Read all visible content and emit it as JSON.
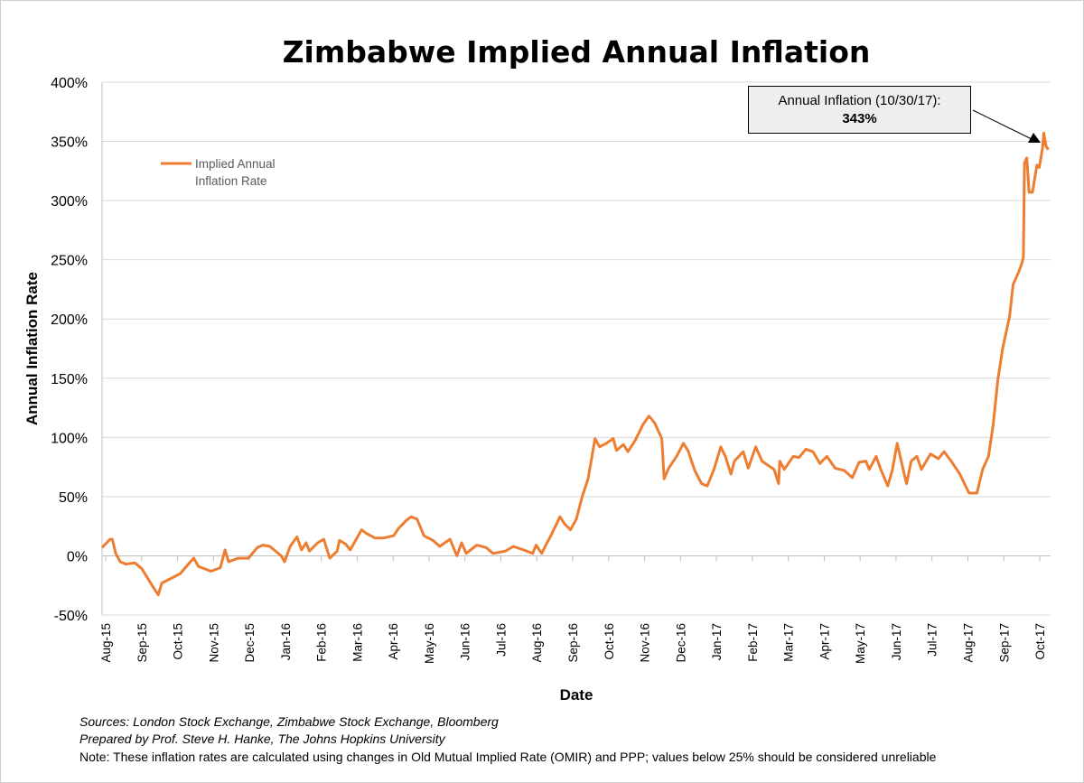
{
  "chart_data": {
    "type": "line",
    "title": "Zimbabwe Implied Annual Inflation",
    "xlabel": "Date",
    "ylabel": "Annual Inflation Rate",
    "ylim": [
      -50,
      400
    ],
    "yticks": [
      "-50%",
      "0%",
      "50%",
      "100%",
      "150%",
      "200%",
      "250%",
      "300%",
      "350%",
      "400%"
    ],
    "ytick_values": [
      -50,
      0,
      50,
      100,
      150,
      200,
      250,
      300,
      350,
      400
    ],
    "xticks": [
      "Aug-15",
      "Sep-15",
      "Oct-15",
      "Nov-15",
      "Dec-15",
      "Jan-16",
      "Feb-16",
      "Mar-16",
      "Apr-16",
      "May-16",
      "Jun-16",
      "Jul-16",
      "Aug-16",
      "Sep-16",
      "Oct-16",
      "Nov-16",
      "Dec-16",
      "Jan-17",
      "Feb-17",
      "Mar-17",
      "Apr-17",
      "May-17",
      "Jun-17",
      "Jul-17",
      "Aug-17",
      "Sep-17",
      "Oct-17"
    ],
    "grid": "horizontal",
    "legend_position": "top-left",
    "series": [
      {
        "name": "Implied Annual Inflation Rate",
        "legend_label": [
          "Implied Annual",
          "Inflation Rate"
        ],
        "color": "#ED7D31",
        "points": [
          [
            "2015-08-01",
            7
          ],
          [
            "2015-08-08",
            14
          ],
          [
            "2015-08-10",
            14
          ],
          [
            "2015-08-13",
            2
          ],
          [
            "2015-08-17",
            -5
          ],
          [
            "2015-08-22",
            -7
          ],
          [
            "2015-08-30",
            -6
          ],
          [
            "2015-09-05",
            -11
          ],
          [
            "2015-09-10",
            -19
          ],
          [
            "2015-09-15",
            -27
          ],
          [
            "2015-09-19",
            -33
          ],
          [
            "2015-09-22",
            -23
          ],
          [
            "2015-09-30",
            -19
          ],
          [
            "2015-10-08",
            -15
          ],
          [
            "2015-10-17",
            -5
          ],
          [
            "2015-10-20",
            -2
          ],
          [
            "2015-10-24",
            -9
          ],
          [
            "2015-11-04",
            -13
          ],
          [
            "2015-11-12",
            -10
          ],
          [
            "2015-11-16",
            5
          ],
          [
            "2015-11-19",
            -5
          ],
          [
            "2015-11-27",
            -2
          ],
          [
            "2015-12-06",
            -2
          ],
          [
            "2015-12-14",
            7
          ],
          [
            "2015-12-19",
            9
          ],
          [
            "2015-12-25",
            8
          ],
          [
            "2016-01-04",
            0
          ],
          [
            "2016-01-07",
            -5
          ],
          [
            "2016-01-12",
            8
          ],
          [
            "2016-01-18",
            16
          ],
          [
            "2016-01-22",
            5
          ],
          [
            "2016-01-26",
            11
          ],
          [
            "2016-01-29",
            4
          ],
          [
            "2016-02-05",
            11
          ],
          [
            "2016-02-10",
            14
          ],
          [
            "2016-02-15",
            -2
          ],
          [
            "2016-02-21",
            4
          ],
          [
            "2016-02-23",
            13
          ],
          [
            "2016-02-28",
            10
          ],
          [
            "2016-03-03",
            5
          ],
          [
            "2016-03-13",
            22
          ],
          [
            "2016-03-17",
            19
          ],
          [
            "2016-03-25",
            15
          ],
          [
            "2016-04-01",
            15
          ],
          [
            "2016-04-10",
            17
          ],
          [
            "2016-04-14",
            23
          ],
          [
            "2016-04-21",
            30
          ],
          [
            "2016-04-25",
            33
          ],
          [
            "2016-04-30",
            31
          ],
          [
            "2016-05-06",
            17
          ],
          [
            "2016-05-14",
            13
          ],
          [
            "2016-05-20",
            8
          ],
          [
            "2016-05-29",
            14
          ],
          [
            "2016-06-04",
            0
          ],
          [
            "2016-06-08",
            11
          ],
          [
            "2016-06-12",
            2
          ],
          [
            "2016-06-21",
            9
          ],
          [
            "2016-06-29",
            7
          ],
          [
            "2016-07-05",
            2
          ],
          [
            "2016-07-16",
            4
          ],
          [
            "2016-07-23",
            8
          ],
          [
            "2016-08-01",
            5
          ],
          [
            "2016-08-09",
            2
          ],
          [
            "2016-08-12",
            9
          ],
          [
            "2016-08-17",
            2
          ],
          [
            "2016-08-20",
            8
          ],
          [
            "2016-08-25",
            17
          ],
          [
            "2016-09-02",
            33
          ],
          [
            "2016-09-06",
            27
          ],
          [
            "2016-09-11",
            22
          ],
          [
            "2016-09-16",
            31
          ],
          [
            "2016-09-21",
            50
          ],
          [
            "2016-09-26",
            65
          ],
          [
            "2016-10-02",
            99
          ],
          [
            "2016-10-06",
            92
          ],
          [
            "2016-10-12",
            95
          ],
          [
            "2016-10-18",
            99
          ],
          [
            "2016-10-21",
            89
          ],
          [
            "2016-10-27",
            94
          ],
          [
            "2016-10-31",
            88
          ],
          [
            "2016-11-06",
            97
          ],
          [
            "2016-11-13",
            111
          ],
          [
            "2016-11-18",
            118
          ],
          [
            "2016-11-23",
            112
          ],
          [
            "2016-11-29",
            99
          ],
          [
            "2016-12-01",
            65
          ],
          [
            "2016-12-05",
            74
          ],
          [
            "2016-12-12",
            84
          ],
          [
            "2016-12-18",
            95
          ],
          [
            "2016-12-22",
            89
          ],
          [
            "2016-12-28",
            72
          ],
          [
            "2017-01-03",
            61
          ],
          [
            "2017-01-08",
            59
          ],
          [
            "2017-01-14",
            73
          ],
          [
            "2017-01-20",
            92
          ],
          [
            "2017-01-24",
            84
          ],
          [
            "2017-01-29",
            69
          ],
          [
            "2017-02-01",
            80
          ],
          [
            "2017-02-08",
            88
          ],
          [
            "2017-02-12",
            74
          ],
          [
            "2017-02-18",
            92
          ],
          [
            "2017-02-23",
            80
          ],
          [
            "2017-03-05",
            73
          ],
          [
            "2017-03-09",
            61
          ],
          [
            "2017-03-10",
            80
          ],
          [
            "2017-03-14",
            73
          ],
          [
            "2017-03-22",
            84
          ],
          [
            "2017-03-27",
            83
          ],
          [
            "2017-04-02",
            90
          ],
          [
            "2017-04-08",
            88
          ],
          [
            "2017-04-14",
            78
          ],
          [
            "2017-04-20",
            84
          ],
          [
            "2017-04-27",
            74
          ],
          [
            "2017-05-05",
            72
          ],
          [
            "2017-05-12",
            66
          ],
          [
            "2017-05-18",
            79
          ],
          [
            "2017-05-24",
            80
          ],
          [
            "2017-05-27",
            73
          ],
          [
            "2017-06-02",
            84
          ],
          [
            "2017-06-06",
            73
          ],
          [
            "2017-06-12",
            59
          ],
          [
            "2017-06-16",
            73
          ],
          [
            "2017-06-20",
            95
          ],
          [
            "2017-06-26",
            69
          ],
          [
            "2017-06-28",
            61
          ],
          [
            "2017-07-02",
            80
          ],
          [
            "2017-07-07",
            84
          ],
          [
            "2017-07-11",
            73
          ],
          [
            "2017-07-19",
            86
          ],
          [
            "2017-07-26",
            82
          ],
          [
            "2017-07-31",
            88
          ],
          [
            "2017-08-07",
            79
          ],
          [
            "2017-08-14",
            69
          ],
          [
            "2017-08-22",
            53
          ],
          [
            "2017-08-29",
            53
          ],
          [
            "2017-09-03",
            73
          ],
          [
            "2017-09-08",
            84
          ],
          [
            "2017-09-12",
            111
          ],
          [
            "2017-09-16",
            149
          ],
          [
            "2017-09-20",
            175
          ],
          [
            "2017-09-26",
            202
          ],
          [
            "2017-09-29",
            229
          ],
          [
            "2017-10-04",
            240
          ],
          [
            "2017-10-07",
            248
          ],
          [
            "2017-10-08",
            252
          ],
          [
            "2017-10-09",
            332
          ],
          [
            "2017-10-11",
            336
          ],
          [
            "2017-10-13",
            307
          ],
          [
            "2017-10-16",
            307
          ],
          [
            "2017-10-20",
            330
          ],
          [
            "2017-10-22",
            328
          ],
          [
            "2017-10-25",
            345
          ],
          [
            "2017-10-26",
            357
          ],
          [
            "2017-10-28",
            346
          ],
          [
            "2017-10-30",
            343
          ]
        ]
      }
    ],
    "annotation": {
      "label": "Annual Inflation (10/30/17):",
      "value": "343%"
    }
  },
  "notes": {
    "sources": "Sources: London Stock Exchange, Zimbabwe Stock Exchange, Bloomberg",
    "prepared": "Prepared by Prof. Steve H. Hanke, The Johns Hopkins University",
    "note": "Note: These inflation rates are calculated using changes in Old Mutual Implied Rate (OMIR) and PPP; values below 25% should be considered unreliable"
  }
}
